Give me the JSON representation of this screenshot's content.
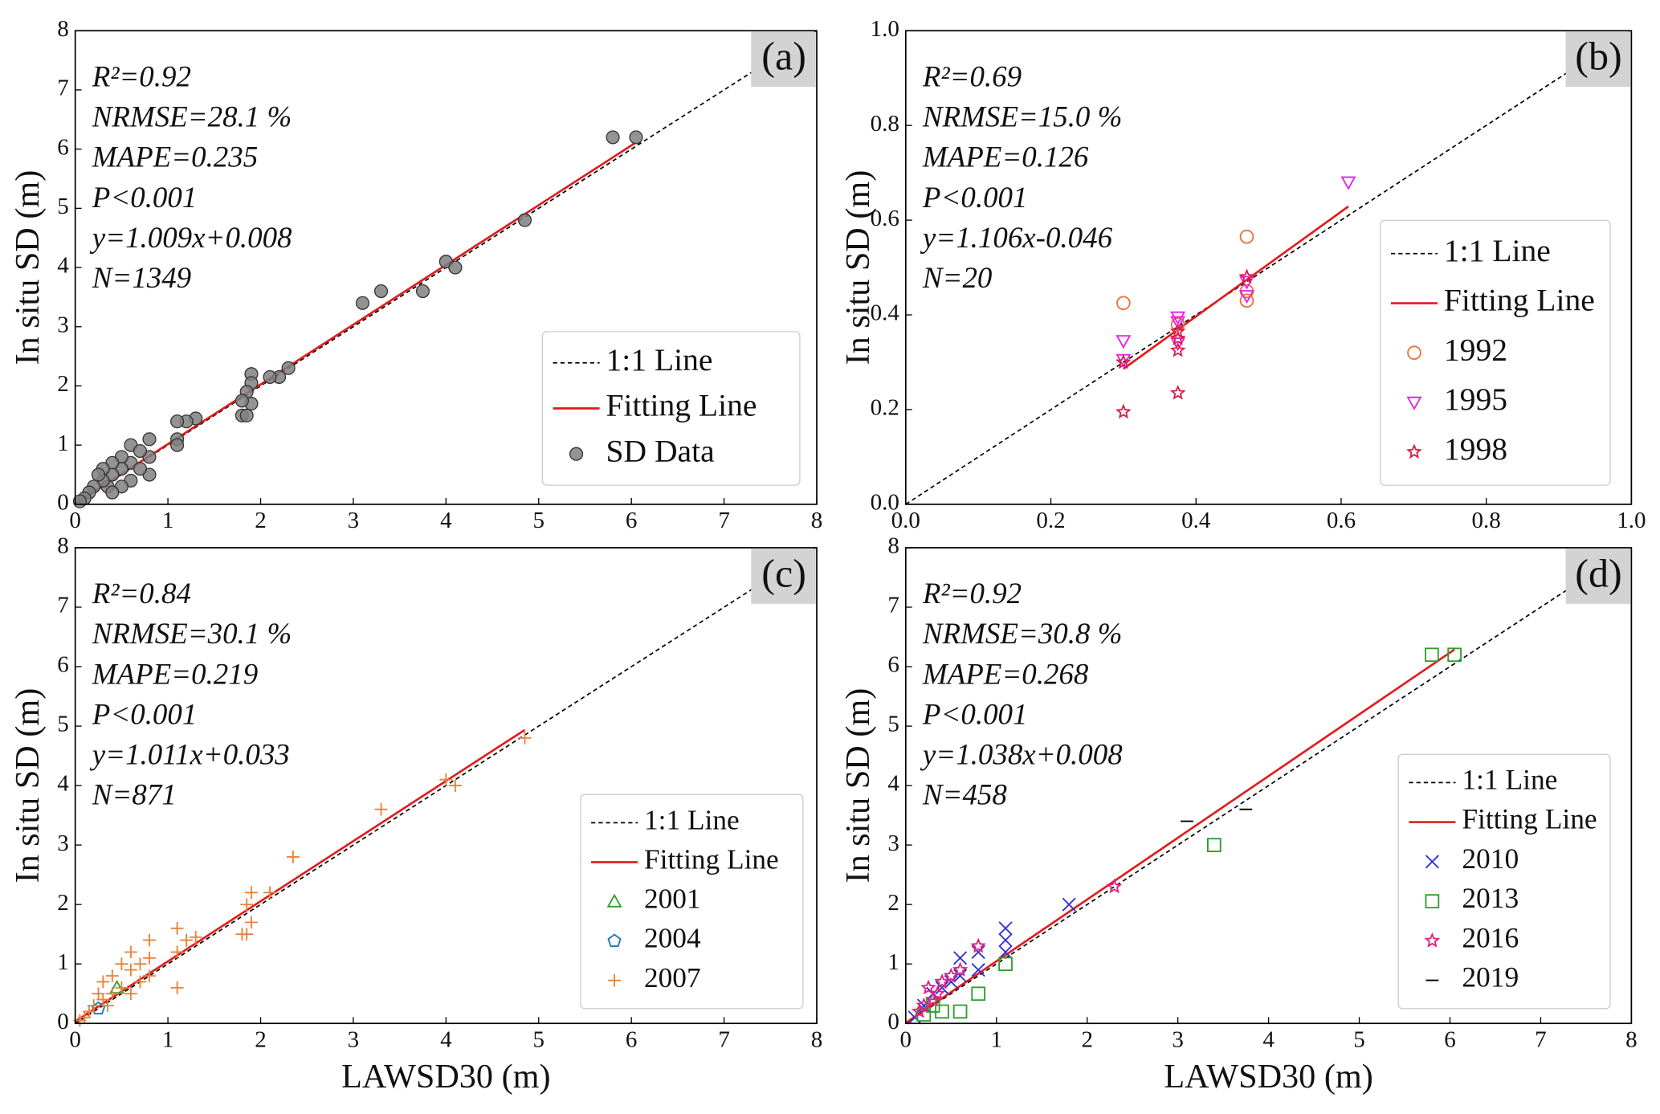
{
  "chart_data": [
    {
      "type": "scatter",
      "panel_label": "(a)",
      "ylabel": "In situ SD (m)",
      "annotations": [
        "R²=0.92",
        "NRMSE=28.1 %",
        "MAPE=0.235",
        "P<0.001",
        "y=1.009x+0.008",
        "N=1349"
      ],
      "xlim": [
        0,
        8
      ],
      "ylim": [
        0,
        8
      ],
      "xticks": [
        0,
        1,
        2,
        3,
        4,
        5,
        6,
        7,
        8
      ],
      "yticks": [
        0,
        1,
        2,
        3,
        4,
        5,
        6,
        7,
        8
      ],
      "series": [
        {
          "name": "1:1 Line",
          "kind": "line",
          "dash": true,
          "color": "#000000",
          "x": [
            0,
            8
          ],
          "values": [
            0,
            8
          ]
        },
        {
          "name": "Fitting Line",
          "kind": "line",
          "color": "#e31a1c",
          "x": [
            0,
            6.05
          ],
          "values": [
            0.008,
            6.112
          ]
        },
        {
          "name": "SD Data",
          "kind": "scatter",
          "marker": "circle",
          "color": "#808080",
          "x": [
            5.8,
            6.05,
            4.85,
            4.0,
            4.1,
            3.75,
            3.3,
            3.1,
            2.3,
            2.2,
            2.1,
            1.9,
            1.9,
            1.85,
            1.8,
            1.85,
            1.9,
            1.8,
            1.3,
            1.2,
            1.1,
            1.1,
            1.1,
            0.8,
            0.8,
            0.8,
            0.6,
            0.6,
            0.6,
            0.5,
            0.5,
            0.5,
            0.4,
            0.4,
            0.35,
            0.3,
            0.3,
            0.25,
            0.2,
            0.15,
            0.1,
            0.05,
            0.4,
            0.7,
            0.7
          ],
          "values": [
            6.2,
            6.2,
            4.8,
            4.1,
            4.0,
            3.6,
            3.6,
            3.4,
            2.3,
            2.15,
            2.15,
            2.2,
            2.05,
            1.9,
            1.5,
            1.5,
            1.7,
            1.75,
            1.45,
            1.4,
            1.4,
            1.1,
            1.0,
            1.1,
            0.8,
            0.5,
            1.0,
            0.7,
            0.4,
            0.8,
            0.6,
            0.3,
            0.7,
            0.5,
            0.3,
            0.6,
            0.4,
            0.5,
            0.3,
            0.2,
            0.1,
            0.05,
            0.2,
            0.9,
            0.6
          ]
        }
      ]
    },
    {
      "type": "scatter",
      "panel_label": "(b)",
      "ylabel": "In situ SD (m)",
      "annotations": [
        "R²=0.69",
        "NRMSE=15.0 %",
        "MAPE=0.126",
        "P<0.001",
        "y=1.106x-0.046",
        "N=20"
      ],
      "xlim": [
        0,
        1
      ],
      "ylim": [
        0,
        1
      ],
      "xticks": [
        {
          "value": 0,
          "label": "0.0"
        },
        0.2,
        0.4,
        0.6,
        0.8,
        {
          "value": 1,
          "label": "1.0"
        }
      ],
      "yticks": [
        {
          "value": 0,
          "label": "0.0"
        },
        0.2,
        0.4,
        0.6,
        0.8,
        {
          "value": 1,
          "label": "1.0"
        }
      ],
      "series": [
        {
          "name": "1:1 Line",
          "kind": "line",
          "dash": true,
          "color": "#000000",
          "x": [
            0,
            1
          ],
          "values": [
            0,
            1
          ]
        },
        {
          "name": "Fitting Line",
          "kind": "line",
          "color": "#e31a1c",
          "x": [
            0.3,
            0.61
          ],
          "values": [
            0.286,
            0.629
          ]
        },
        {
          "name": "1992",
          "kind": "scatter",
          "marker": "circle-open",
          "color": "#e8743b",
          "x": [
            0.3,
            0.47,
            0.47,
            0.47,
            0.375
          ],
          "values": [
            0.425,
            0.565,
            0.45,
            0.43,
            0.38
          ]
        },
        {
          "name": "1995",
          "kind": "scatter",
          "marker": "triangle-down",
          "color": "#e81ee8",
          "x": [
            0.3,
            0.3,
            0.375,
            0.375,
            0.375,
            0.47,
            0.47,
            0.61
          ],
          "values": [
            0.345,
            0.305,
            0.395,
            0.385,
            0.34,
            0.44,
            0.47,
            0.68
          ]
        },
        {
          "name": "1998",
          "kind": "scatter",
          "marker": "star",
          "color": "#d6204a",
          "x": [
            0.3,
            0.375,
            0.375,
            0.375,
            0.47,
            0.3,
            0.375
          ],
          "values": [
            0.195,
            0.235,
            0.325,
            0.365,
            0.48,
            0.3,
            0.35
          ]
        }
      ]
    },
    {
      "type": "scatter",
      "panel_label": "(c)",
      "ylabel": "In situ SD (m)",
      "xlabel": "LAWSD30 (m)",
      "annotations": [
        "R²=0.84",
        "NRMSE=30.1 %",
        "MAPE=0.219",
        "P<0.001",
        "y=1.011x+0.033",
        "N=871"
      ],
      "xlim": [
        0,
        8
      ],
      "ylim": [
        0,
        8
      ],
      "xticks": [
        0,
        1,
        2,
        3,
        4,
        5,
        6,
        7,
        8
      ],
      "yticks": [
        0,
        1,
        2,
        3,
        4,
        5,
        6,
        7,
        8
      ],
      "series": [
        {
          "name": "1:1 Line",
          "kind": "line",
          "dash": true,
          "color": "#000000",
          "x": [
            0,
            8
          ],
          "values": [
            0,
            8
          ]
        },
        {
          "name": "Fitting Line",
          "kind": "line",
          "color": "#e31a1c",
          "x": [
            0,
            4.85
          ],
          "values": [
            0.033,
            4.936
          ]
        },
        {
          "name": "2001",
          "kind": "scatter",
          "marker": "triangle",
          "color": "#2ca02c",
          "x": [
            0.45
          ],
          "values": [
            0.6
          ]
        },
        {
          "name": "2004",
          "kind": "scatter",
          "marker": "pentagon",
          "color": "#1f77b4",
          "x": [
            0.25
          ],
          "values": [
            0.25
          ]
        },
        {
          "name": "2007",
          "kind": "scatter",
          "marker": "plus",
          "color": "#e8823a",
          "x": [
            4.85,
            4.0,
            4.1,
            3.3,
            2.35,
            2.1,
            1.9,
            1.85,
            1.8,
            1.9,
            1.85,
            1.3,
            1.2,
            1.1,
            1.1,
            1.1,
            0.8,
            0.8,
            0.8,
            0.6,
            0.6,
            0.6,
            0.5,
            0.5,
            0.4,
            0.4,
            0.35,
            0.3,
            0.3,
            0.25,
            0.2,
            0.15,
            0.1,
            0.05,
            0.7,
            0.7
          ],
          "values": [
            4.8,
            4.1,
            4.0,
            3.6,
            2.8,
            2.2,
            2.2,
            2.0,
            1.5,
            1.7,
            1.5,
            1.45,
            1.4,
            1.6,
            1.2,
            0.6,
            1.4,
            1.1,
            0.8,
            1.2,
            0.9,
            0.5,
            1.0,
            0.6,
            0.8,
            0.5,
            0.3,
            0.7,
            0.4,
            0.5,
            0.3,
            0.2,
            0.1,
            0.05,
            1.0,
            0.7
          ]
        }
      ]
    },
    {
      "type": "scatter",
      "panel_label": "(d)",
      "ylabel": "In situ SD (m)",
      "xlabel": "LAWSD30 (m)",
      "annotations": [
        "R²=0.92",
        "NRMSE=30.8 %",
        "MAPE=0.268",
        "P<0.001",
        "y=1.038x+0.008",
        "N=458"
      ],
      "xlim": [
        0,
        8
      ],
      "ylim": [
        0,
        8
      ],
      "xticks": [
        0,
        1,
        2,
        3,
        4,
        5,
        6,
        7,
        8
      ],
      "yticks": [
        0,
        1,
        2,
        3,
        4,
        5,
        6,
        7,
        8
      ],
      "series": [
        {
          "name": "1:1 Line",
          "kind": "line",
          "dash": true,
          "color": "#000000",
          "x": [
            0,
            8
          ],
          "values": [
            0,
            8
          ]
        },
        {
          "name": "Fitting Line",
          "kind": "line",
          "color": "#e31a1c",
          "x": [
            0,
            6.05
          ],
          "values": [
            0.008,
            6.288
          ]
        },
        {
          "name": "2010",
          "kind": "scatter",
          "marker": "x",
          "color": "#3030d0",
          "x": [
            1.8,
            1.1,
            1.1,
            1.1,
            0.8,
            0.8,
            0.6,
            0.6,
            0.5,
            0.4,
            0.3,
            0.2,
            0.1
          ],
          "values": [
            2.0,
            1.6,
            1.4,
            1.2,
            1.2,
            0.9,
            1.1,
            0.8,
            0.7,
            0.6,
            0.5,
            0.3,
            0.1
          ]
        },
        {
          "name": "2013",
          "kind": "scatter",
          "marker": "square",
          "color": "#2ca02c",
          "x": [
            5.8,
            6.05,
            3.4,
            1.1,
            0.8,
            0.6,
            0.4,
            0.3,
            0.2
          ],
          "values": [
            6.2,
            6.2,
            3.0,
            1.0,
            0.5,
            0.2,
            0.2,
            0.3,
            0.15
          ]
        },
        {
          "name": "2016",
          "kind": "scatter",
          "marker": "star",
          "color": "#e0207f",
          "x": [
            2.3,
            0.8,
            0.6,
            0.5,
            0.4,
            0.35,
            0.3,
            0.25,
            0.2,
            0.15
          ],
          "values": [
            2.3,
            1.3,
            0.9,
            0.8,
            0.7,
            0.5,
            0.4,
            0.6,
            0.3,
            0.2
          ]
        },
        {
          "name": "2019",
          "kind": "scatter",
          "marker": "hline",
          "color": "#000000",
          "x": [
            3.1,
            3.75
          ],
          "values": [
            3.4,
            3.6
          ]
        }
      ]
    }
  ]
}
